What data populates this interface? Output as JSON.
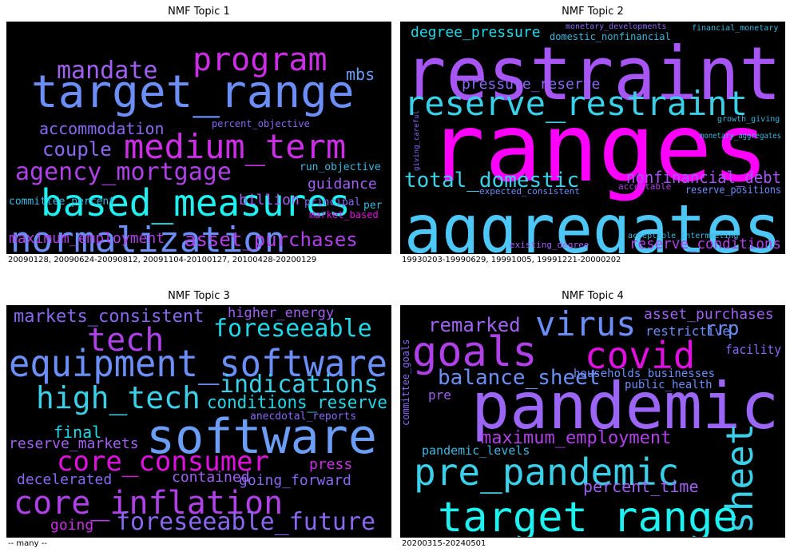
{
  "chart_data": [
    {
      "type": "wordcloud",
      "title": "NMF Topic 1",
      "caption": "20090128, 20090624-20090812, 20091104-20100127, 20100428-20200129",
      "words": [
        {
          "text": "target_range",
          "color": "#6c8ef7",
          "size": 56
        },
        {
          "text": "program",
          "color": "#cc2ee6",
          "size": 40
        },
        {
          "text": "mandate",
          "color": "#a060f0",
          "size": 30
        },
        {
          "text": "mbs",
          "color": "#6c9ef7",
          "size": 20
        },
        {
          "text": "medium_term",
          "color": "#cc2ee6",
          "size": 42
        },
        {
          "text": "accommodation",
          "color": "#8a68f0",
          "size": 20
        },
        {
          "text": "percent_objective",
          "color": "#8a68f0",
          "size": 12
        },
        {
          "text": "couple",
          "color": "#8a68f0",
          "size": 24
        },
        {
          "text": "agency_mortgage",
          "color": "#b040e8",
          "size": 30
        },
        {
          "text": "run_objective",
          "color": "#3ab8e0",
          "size": 13
        },
        {
          "text": "guidance",
          "color": "#a060f0",
          "size": 18
        },
        {
          "text": "based_measures",
          "color": "#1ff0f0",
          "size": 46
        },
        {
          "text": "per",
          "color": "#3ab8e0",
          "size": 13
        },
        {
          "text": "committee_percent",
          "color": "#3ab8e0",
          "size": 13
        },
        {
          "text": "billion",
          "color": "#a060f0",
          "size": 18
        },
        {
          "text": "principal",
          "color": "#8a68f0",
          "size": 13
        },
        {
          "text": "normalization",
          "color": "#6c8ef7",
          "size": 44
        },
        {
          "text": "market_based",
          "color": "#e010e0",
          "size": 12
        },
        {
          "text": "maximum_employment",
          "color": "#b040e8",
          "size": 18
        },
        {
          "text": "asset_purchases",
          "color": "#b040e8",
          "size": 24
        }
      ]
    },
    {
      "type": "wordcloud",
      "title": "NMF Topic 2",
      "caption": "19930203-19990629, 19991005, 19991221-20000202",
      "words": [
        {
          "text": "degree_pressure",
          "color": "#1fd8e8",
          "size": 18
        },
        {
          "text": "monetary_developments",
          "color": "#8a68f0",
          "size": 10
        },
        {
          "text": "financial_monetary",
          "color": "#3ab8e0",
          "size": 10
        },
        {
          "text": "domestic_nonfinancial",
          "color": "#3ab8e0",
          "size": 12
        },
        {
          "text": "restraint",
          "color": "#a855f5",
          "size": 92
        },
        {
          "text": "pressure_reserve",
          "color": "#8a68f0",
          "size": 18
        },
        {
          "text": "reserve_restraint",
          "color": "#3ad0e8",
          "size": 42
        },
        {
          "text": "growth_giving",
          "color": "#3ab8e0",
          "size": 10
        },
        {
          "text": "giving_careful",
          "color": "#8a68f0",
          "size": 9
        },
        {
          "text": "ranges",
          "color": "#ff00ff",
          "size": 118
        },
        {
          "text": "monetary_aggregates",
          "color": "#3ab8e0",
          "size": 10
        },
        {
          "text": "total_domestic",
          "color": "#3ad0e8",
          "size": 26
        },
        {
          "text": "nonfinancial_debt",
          "color": "#a855f5",
          "size": 20
        },
        {
          "text": "expected_consistent",
          "color": "#6c8ef7",
          "size": 11
        },
        {
          "text": "acceptable",
          "color": "#b040e8",
          "size": 11
        },
        {
          "text": "reserve_positions",
          "color": "#6c8ef7",
          "size": 13
        },
        {
          "text": "aggregates",
          "color": "#4dc7f5",
          "size": 84
        },
        {
          "text": "existing_degree",
          "color": "#a060f0",
          "size": 11
        },
        {
          "text": "acceptable_intermeeting",
          "color": "#3ab8e0",
          "size": 10
        },
        {
          "text": "reserve_conditions",
          "color": "#b040e8",
          "size": 18
        }
      ]
    },
    {
      "type": "wordcloud",
      "title": "NMF Topic 3",
      "caption": "-- many --",
      "words": [
        {
          "text": "markets_consistent",
          "color": "#8a68f0",
          "size": 22
        },
        {
          "text": "higher_energy",
          "color": "#a060f0",
          "size": 17
        },
        {
          "text": "tech",
          "color": "#b040e8",
          "size": 40
        },
        {
          "text": "foreseeable",
          "color": "#1fd8e8",
          "size": 30
        },
        {
          "text": "equipment_software",
          "color": "#6c8ef7",
          "size": 46
        },
        {
          "text": "indications",
          "color": "#3ad0e8",
          "size": 30
        },
        {
          "text": "high_tech",
          "color": "#3ad0e8",
          "size": 38
        },
        {
          "text": "conditions_reserve",
          "color": "#1fd8e8",
          "size": 22
        },
        {
          "text": "anecdotal_reports",
          "color": "#8a68f0",
          "size": 13
        },
        {
          "text": "final",
          "color": "#1fd8e8",
          "size": 20
        },
        {
          "text": "software",
          "color": "#6c9ef7",
          "size": 60
        },
        {
          "text": "reserve_markets",
          "color": "#a060f0",
          "size": 18
        },
        {
          "text": "core_consumer",
          "color": "#e010e0",
          "size": 34
        },
        {
          "text": "press",
          "color": "#cc2ee6",
          "size": 18
        },
        {
          "text": "decelerated",
          "color": "#8a68f0",
          "size": 18
        },
        {
          "text": "contained",
          "color": "#a060f0",
          "size": 18
        },
        {
          "text": "going_forward",
          "color": "#8a68f0",
          "size": 18
        },
        {
          "text": "core_inflation",
          "color": "#b040e8",
          "size": 40
        },
        {
          "text": "going",
          "color": "#cc2ee6",
          "size": 18
        },
        {
          "text": "foreseeable_future",
          "color": "#8a68f0",
          "size": 30
        }
      ]
    },
    {
      "type": "wordcloud",
      "title": "NMF Topic 4",
      "caption": "20200315-20240501",
      "words": [
        {
          "text": "asset_purchases",
          "color": "#a060f0",
          "size": 18
        },
        {
          "text": "remarked",
          "color": "#a060f0",
          "size": 24
        },
        {
          "text": "virus",
          "color": "#6c8ef7",
          "size": 42
        },
        {
          "text": "restrictive",
          "color": "#6c8ef7",
          "size": 16
        },
        {
          "text": "rrp",
          "color": "#6c8ef7",
          "size": 24
        },
        {
          "text": "goals",
          "color": "#b040e8",
          "size": 52
        },
        {
          "text": "covid",
          "color": "#e010e0",
          "size": 46
        },
        {
          "text": "facility",
          "color": "#8a68f0",
          "size": 16
        },
        {
          "text": "committee_goals",
          "color": "#8a68f0",
          "size": 12
        },
        {
          "text": "balance_sheet",
          "color": "#6c8ef7",
          "size": 26
        },
        {
          "text": "households_businesses",
          "color": "#6c8ef7",
          "size": 14
        },
        {
          "text": "public_health",
          "color": "#6c8ef7",
          "size": 14
        },
        {
          "text": "pre",
          "color": "#a060f0",
          "size": 16
        },
        {
          "text": "pandemic",
          "color": "#9b66f5",
          "size": 80
        },
        {
          "text": "maximum_employment",
          "color": "#b040e8",
          "size": 22
        },
        {
          "text": "sheet",
          "color": "#3ad0e8",
          "size": 46
        },
        {
          "text": "pandemic_levels",
          "color": "#3ab8e0",
          "size": 15
        },
        {
          "text": "pre_pandemic",
          "color": "#3ad0e8",
          "size": 46
        },
        {
          "text": "percent_time",
          "color": "#a060f0",
          "size": 20
        },
        {
          "text": "target_range",
          "color": "#1ff0f0",
          "size": 52
        }
      ]
    }
  ]
}
